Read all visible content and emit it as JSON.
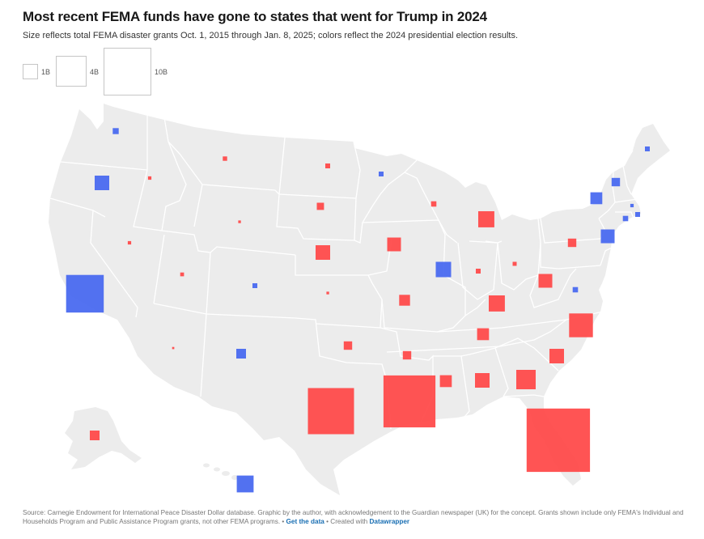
{
  "header": {
    "title": "Most recent FEMA funds have gone to states that went for Trump in 2024",
    "subtitle": "Size reflects total FEMA disaster grants Oct. 1, 2015 through Jan. 8, 2025; colors reflect the 2024 presidential election results."
  },
  "legend": {
    "sizes": [
      {
        "label": "1B",
        "value_billion": 1
      },
      {
        "label": "4B",
        "value_billion": 4
      },
      {
        "label": "10B",
        "value_billion": 10
      }
    ]
  },
  "colors": {
    "trump": "#ff4b4b",
    "harris": "#4a6af0",
    "land": "#ececec",
    "border": "#ffffff"
  },
  "footer": {
    "source": "Source: Carnegie Endowment for International Peace Disaster Dollar database. Graphic by the author, with acknowledgement to the Guardian newspaper (UK) for the concept. Grants shown include only FEMA's Individual and Households Program and Public Assistance Program grants, not other FEMA programs.",
    "sep1": " • ",
    "get_data": "Get the data",
    "sep2": " • Created with ",
    "tool": "Datawrapper"
  },
  "chart_data": {
    "type": "proportional-symbol map",
    "size_unit": "USD billion (area-proportional squares)",
    "states": [
      {
        "state": "WA",
        "winner": "Harris",
        "value": 0.15
      },
      {
        "state": "OR",
        "winner": "Harris",
        "value": 0.9
      },
      {
        "state": "CA",
        "winner": "Harris",
        "value": 6.0
      },
      {
        "state": "NV",
        "winner": "Trump",
        "value": 0.05
      },
      {
        "state": "ID",
        "winner": "Trump",
        "value": 0.05
      },
      {
        "state": "MT",
        "winner": "Trump",
        "value": 0.08
      },
      {
        "state": "WY",
        "winner": "Trump",
        "value": 0.03
      },
      {
        "state": "UT",
        "winner": "Trump",
        "value": 0.06
      },
      {
        "state": "AZ",
        "winner": "Trump",
        "value": 0.02
      },
      {
        "state": "CO",
        "winner": "Harris",
        "value": 0.1
      },
      {
        "state": "NM",
        "winner": "Harris",
        "value": 0.4
      },
      {
        "state": "ND",
        "winner": "Trump",
        "value": 0.1
      },
      {
        "state": "SD",
        "winner": "Trump",
        "value": 0.22
      },
      {
        "state": "NE",
        "winner": "Trump",
        "value": 0.9
      },
      {
        "state": "KS",
        "winner": "Trump",
        "value": 0.03
      },
      {
        "state": "OK",
        "winner": "Trump",
        "value": 0.3
      },
      {
        "state": "TX",
        "winner": "Trump",
        "value": 9.0
      },
      {
        "state": "MN",
        "winner": "Harris",
        "value": 0.1
      },
      {
        "state": "IA",
        "winner": "Trump",
        "value": 0.8
      },
      {
        "state": "MO",
        "winner": "Trump",
        "value": 0.5
      },
      {
        "state": "AR",
        "winner": "Trump",
        "value": 0.3
      },
      {
        "state": "LA",
        "winner": "Trump",
        "value": 11.4
      },
      {
        "state": "WI",
        "winner": "Trump",
        "value": 0.12
      },
      {
        "state": "IL",
        "winner": "Harris",
        "value": 1.0
      },
      {
        "state": "MI",
        "winner": "Trump",
        "value": 1.1
      },
      {
        "state": "IN",
        "winner": "Trump",
        "value": 0.1
      },
      {
        "state": "OH",
        "winner": "Trump",
        "value": 0.07
      },
      {
        "state": "KY",
        "winner": "Trump",
        "value": 1.1
      },
      {
        "state": "TN",
        "winner": "Trump",
        "value": 0.6
      },
      {
        "state": "MS",
        "winner": "Trump",
        "value": 0.6
      },
      {
        "state": "AL",
        "winner": "Trump",
        "value": 0.9
      },
      {
        "state": "GA",
        "winner": "Trump",
        "value": 1.6
      },
      {
        "state": "FL",
        "winner": "Trump",
        "value": 17.0
      },
      {
        "state": "SC",
        "winner": "Trump",
        "value": 0.9
      },
      {
        "state": "NC",
        "winner": "Trump",
        "value": 2.4
      },
      {
        "state": "VA",
        "winner": "Harris",
        "value": 0.12
      },
      {
        "state": "WV",
        "winner": "Trump",
        "value": 0.8
      },
      {
        "state": "PA",
        "winner": "Trump",
        "value": 0.3
      },
      {
        "state": "NY",
        "winner": "Harris",
        "value": 0.6
      },
      {
        "state": "NJ",
        "winner": "Harris",
        "value": 0.8
      },
      {
        "state": "VT",
        "winner": "Harris",
        "value": 0.3
      },
      {
        "state": "ME",
        "winner": "Harris",
        "value": 0.1
      },
      {
        "state": "MA",
        "winner": "Harris",
        "value": 0.1
      },
      {
        "state": "CT",
        "winner": "Harris",
        "value": 0.12
      },
      {
        "state": "RI",
        "winner": "Harris",
        "value": 0.05
      },
      {
        "state": "AK",
        "winner": "Trump",
        "value": 0.4
      },
      {
        "state": "HI",
        "winner": "Harris",
        "value": 1.2
      }
    ]
  }
}
